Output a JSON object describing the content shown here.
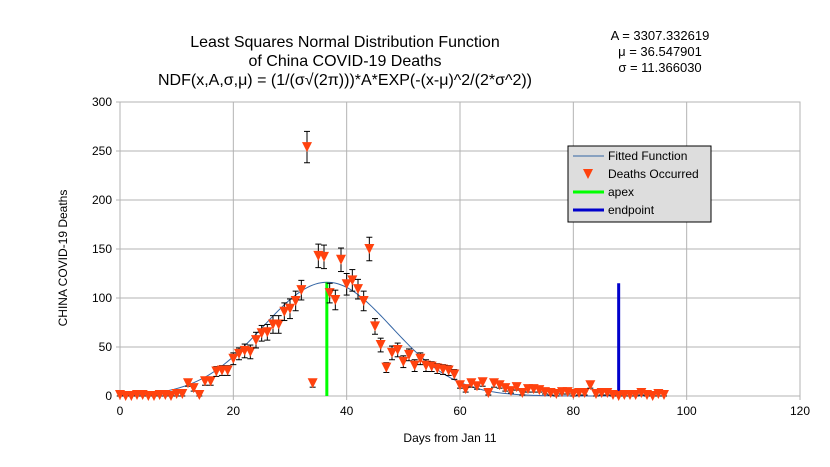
{
  "chart_data": {
    "type": "scatter",
    "title": [
      "Least Squares Normal Distribution Function",
      "of China COVID-19 Deaths",
      "NDF(x,A,σ,μ) = (1/(σ√(2π)))*A*EXP(-(x-μ)^2/(2*σ^2))"
    ],
    "parameters": [
      {
        "label": "A = ",
        "value": "3307.332619"
      },
      {
        "label": "μ = ",
        "value": "36.547901"
      },
      {
        "label": "σ = ",
        "value": "11.366030"
      }
    ],
    "xlabel": "Days from Jan 11",
    "ylabel": "CHINA COVID-19 Deaths",
    "xlim": [
      0,
      120
    ],
    "ylim": [
      0,
      300
    ],
    "xticks": [
      "0",
      "20",
      "40",
      "60",
      "80",
      "100",
      "120"
    ],
    "yticks": [
      "0",
      "50",
      "100",
      "150",
      "200",
      "250",
      "300"
    ],
    "grid": true,
    "legend": {
      "placement": "right",
      "entries": [
        "Fitted Function",
        "Deaths Occurred",
        "apex",
        "endpoint"
      ]
    },
    "fit": {
      "A": 3307.332619,
      "mu": 36.547901,
      "sigma": 11.36603
    },
    "apex": {
      "x": 36.5,
      "y": 116
    },
    "endpoint": {
      "x": 88,
      "y": 115
    },
    "series": [
      {
        "name": "Deaths Occurred",
        "x": [
          0,
          1,
          2,
          3,
          4,
          5,
          6,
          7,
          8,
          9,
          10,
          11,
          12,
          13,
          14,
          15,
          16,
          17,
          18,
          19,
          20,
          21,
          22,
          23,
          24,
          25,
          26,
          27,
          28,
          29,
          30,
          31,
          32,
          33,
          34,
          35,
          36,
          37,
          38,
          39,
          40,
          41,
          42,
          43,
          44,
          45,
          46,
          47,
          48,
          49,
          50,
          51,
          52,
          53,
          54,
          55,
          56,
          57,
          58,
          59,
          60,
          61,
          62,
          63,
          64,
          65,
          66,
          67,
          68,
          69,
          70,
          71,
          72,
          73,
          74,
          75,
          76,
          77,
          78,
          79,
          80,
          81,
          82,
          83,
          84,
          85,
          86,
          87,
          88,
          89,
          90,
          91,
          92,
          93,
          94,
          95,
          96
        ],
        "values": [
          1,
          0,
          0,
          1,
          1,
          0,
          0,
          1,
          1,
          0,
          2,
          2,
          13,
          8,
          1,
          15,
          15,
          25,
          26,
          26,
          38,
          43,
          46,
          45,
          57,
          64,
          65,
          73,
          73,
          86,
          89,
          97,
          108,
          254,
          13,
          143,
          142,
          105,
          98,
          139,
          114,
          118,
          109,
          97,
          150,
          71,
          52,
          29,
          44,
          47,
          35,
          42,
          31,
          38,
          31,
          30,
          28,
          27,
          26,
          22,
          11,
          7,
          13,
          10,
          14,
          3,
          13,
          11,
          8,
          5,
          9,
          3,
          7,
          7,
          6,
          4,
          3,
          2,
          4,
          4,
          2,
          3,
          3,
          11,
          2,
          3,
          3,
          1,
          0,
          1,
          1,
          1,
          3,
          1,
          0,
          2,
          1
        ],
        "errors": [
          2,
          2,
          2,
          2,
          2,
          2,
          2,
          2,
          2,
          2,
          2,
          3,
          3,
          3,
          2,
          4,
          4,
          5,
          5,
          5,
          6,
          6,
          7,
          7,
          8,
          8,
          8,
          9,
          9,
          9,
          10,
          10,
          10,
          16,
          4,
          12,
          12,
          10,
          10,
          12,
          11,
          11,
          10,
          10,
          12,
          8,
          7,
          5,
          7,
          7,
          6,
          6,
          6,
          6,
          6,
          5,
          5,
          5,
          5,
          5,
          3,
          3,
          4,
          3,
          4,
          2,
          4,
          3,
          3,
          2,
          3,
          2,
          3,
          3,
          2,
          2,
          2,
          2,
          2,
          2,
          2,
          2,
          2,
          3,
          2,
          2,
          2,
          2,
          2,
          2,
          2,
          2,
          2,
          2,
          2,
          2,
          2
        ]
      }
    ]
  },
  "colors": {
    "fit": "#3465a4",
    "points": "#ff420e",
    "errorbars": "#000000",
    "apex": "#00ff00",
    "endpoint": "#0000cc",
    "grid": "#b3b3b3",
    "legend_bg": "#dddddd"
  }
}
